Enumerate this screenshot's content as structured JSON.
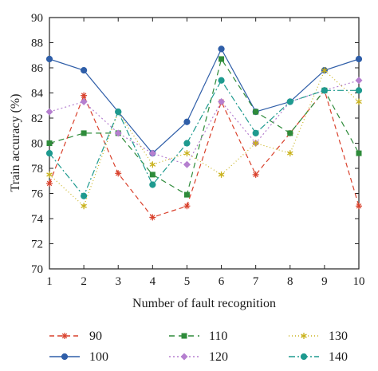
{
  "chart_data": {
    "type": "line",
    "xlabel": "Number of fault recognition",
    "ylabel": "Train accuracy (%)",
    "xlim": [
      1,
      10
    ],
    "ylim": [
      70,
      90
    ],
    "x": [
      1,
      2,
      3,
      4,
      5,
      6,
      7,
      8,
      9,
      10
    ],
    "xticks": [
      1,
      2,
      3,
      4,
      5,
      6,
      7,
      8,
      9,
      10
    ],
    "yticks": [
      70,
      72,
      74,
      76,
      78,
      80,
      82,
      84,
      86,
      88,
      90
    ],
    "grid": false,
    "legend_position": "bottom",
    "series": [
      {
        "name": "90",
        "values": [
          76.8,
          83.8,
          77.6,
          74.1,
          75.0,
          83.3,
          77.5,
          80.8,
          84.2,
          75.0
        ],
        "color": "#d9412c",
        "dash": "6,4",
        "marker": "star"
      },
      {
        "name": "100",
        "values": [
          86.7,
          85.8,
          82.5,
          79.2,
          81.7,
          87.5,
          82.5,
          83.3,
          85.8,
          86.7
        ],
        "color": "#2f5ea8",
        "dash": "",
        "marker": "circle"
      },
      {
        "name": "110",
        "values": [
          80.0,
          80.8,
          80.8,
          77.5,
          75.9,
          86.7,
          82.5,
          80.8,
          84.2,
          79.2
        ],
        "color": "#2e8b3a",
        "dash": "7,5",
        "marker": "square"
      },
      {
        "name": "120",
        "values": [
          82.5,
          83.3,
          80.8,
          79.2,
          78.3,
          83.3,
          80.0,
          83.3,
          84.2,
          85.0
        ],
        "color": "#b57fcf",
        "dash": "2,3",
        "marker": "diamond"
      },
      {
        "name": "130",
        "values": [
          77.5,
          75.0,
          82.5,
          78.3,
          79.2,
          77.5,
          80.0,
          79.2,
          85.8,
          83.3
        ],
        "color": "#c9b21c",
        "dash": "1,3",
        "marker": "asterisk"
      },
      {
        "name": "140",
        "values": [
          79.2,
          75.8,
          82.5,
          76.7,
          80.0,
          85.0,
          80.8,
          83.3,
          84.2,
          84.2
        ],
        "color": "#1e9a8f",
        "dash": "8,3,2,3",
        "marker": "circle"
      }
    ]
  }
}
